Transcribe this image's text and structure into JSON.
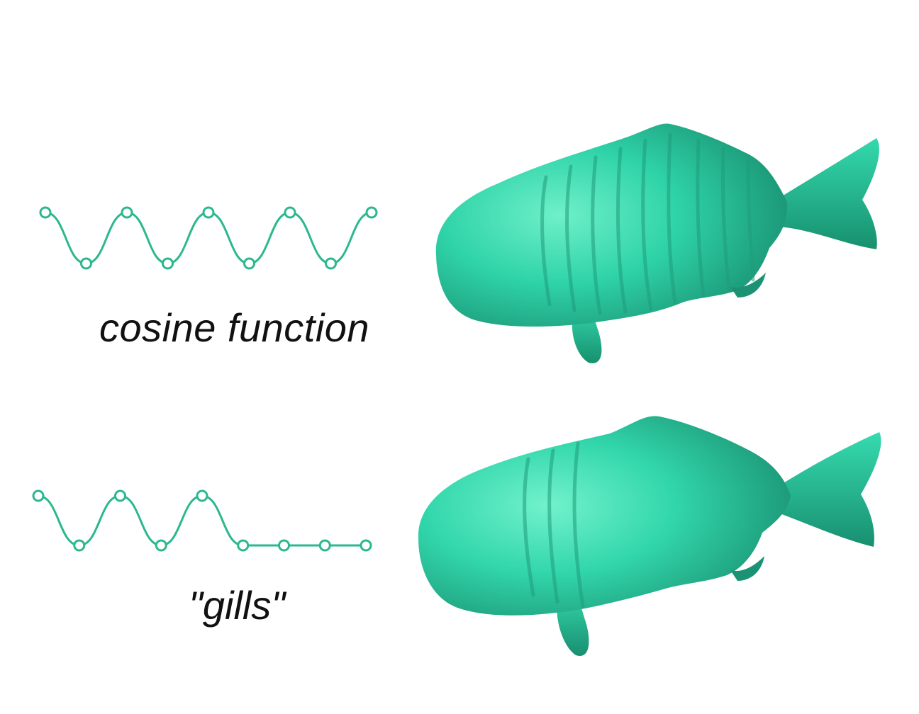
{
  "colors": {
    "curve": "#2bb88f",
    "fish_body": "#2fd3a8",
    "fish_shadow": "#1a9a78",
    "fish_highlight": "#6ff0c9",
    "text": "#111111"
  },
  "rows": [
    {
      "label": "cosine function",
      "profile": [
        1,
        0,
        1,
        0,
        1,
        0,
        1,
        0,
        1
      ]
    },
    {
      "label": "\"gills\"",
      "profile": [
        1,
        0,
        1,
        0,
        1,
        0,
        0,
        0,
        0
      ]
    }
  ]
}
